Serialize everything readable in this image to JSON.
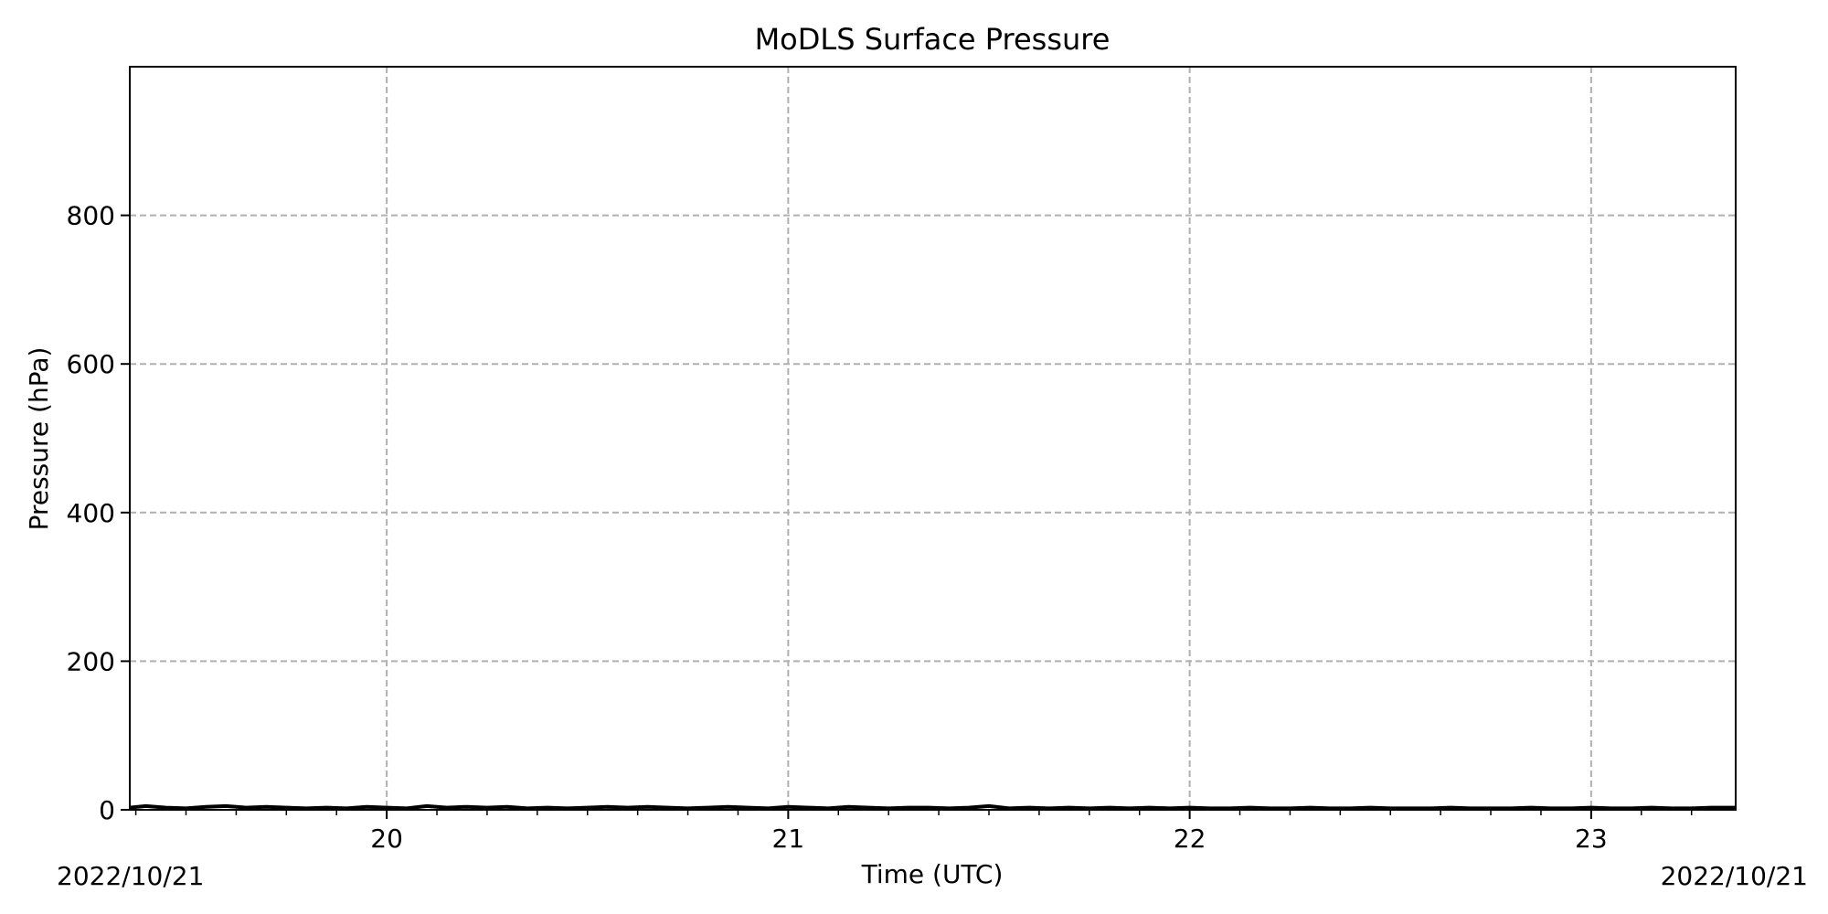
{
  "chart_data": {
    "type": "line",
    "title": "MoDLS Surface Pressure",
    "xlabel": "Time (UTC)",
    "ylabel": "Pressure (hPa)",
    "x_start_label": "2022/10/21",
    "x_end_label": "2022/10/21",
    "xlim": [
      19.36,
      23.36
    ],
    "ylim": [
      0,
      1000
    ],
    "x_ticks": [
      20,
      21,
      22,
      23
    ],
    "y_ticks": [
      0,
      200,
      400,
      600,
      800
    ],
    "grid": true,
    "grid_style": "dashed",
    "series": [
      {
        "color": "#000000",
        "x": [
          19.36,
          19.4,
          19.45,
          19.5,
          19.55,
          19.6,
          19.65,
          19.7,
          19.75,
          19.8,
          19.85,
          19.9,
          19.95,
          20.0,
          20.05,
          20.1,
          20.15,
          20.2,
          20.25,
          20.3,
          20.35,
          20.4,
          20.45,
          20.5,
          20.55,
          20.6,
          20.65,
          20.7,
          20.75,
          20.8,
          20.85,
          20.9,
          20.95,
          21.0,
          21.05,
          21.1,
          21.15,
          21.2,
          21.25,
          21.3,
          21.35,
          21.4,
          21.45,
          21.5,
          21.55,
          21.6,
          21.65,
          21.7,
          21.75,
          21.8,
          21.85,
          21.9,
          21.95,
          22.0,
          22.05,
          22.1,
          22.15,
          22.2,
          22.25,
          22.3,
          22.35,
          22.4,
          22.45,
          22.5,
          22.55,
          22.6,
          22.65,
          22.7,
          22.75,
          22.8,
          22.85,
          22.9,
          22.95,
          23.0,
          23.05,
          23.1,
          23.15,
          23.2,
          23.25,
          23.3,
          23.36
        ],
        "y": [
          3,
          5,
          3,
          2,
          4,
          5,
          3,
          4,
          3,
          2,
          3,
          2,
          4,
          3,
          2,
          5,
          3,
          4,
          3,
          4,
          2,
          3,
          2,
          3,
          4,
          3,
          4,
          3,
          2,
          3,
          4,
          3,
          2,
          4,
          3,
          2,
          4,
          3,
          2,
          3,
          3,
          2,
          3,
          5,
          2,
          3,
          2,
          3,
          2,
          3,
          2,
          3,
          2,
          3,
          2,
          2,
          3,
          2,
          2,
          3,
          2,
          2,
          3,
          2,
          2,
          2,
          3,
          2,
          2,
          2,
          3,
          2,
          2,
          3,
          2,
          2,
          3,
          2,
          2,
          3,
          3
        ]
      }
    ]
  }
}
